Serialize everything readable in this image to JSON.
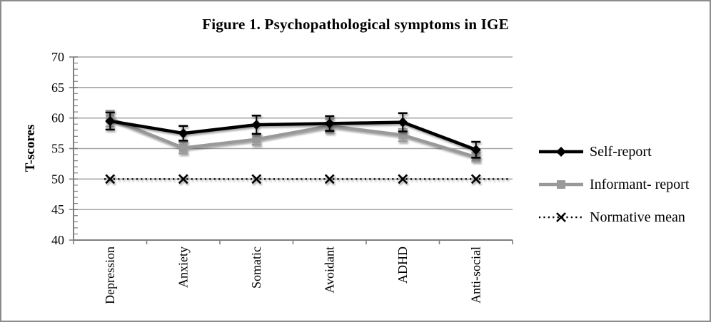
{
  "figure": {
    "title": "Figure 1. Psychopathological symptoms in IGE"
  },
  "chart_data": {
    "type": "line",
    "title": "Figure 1. Psychopathological symptoms in IGE",
    "categories": [
      "Depression",
      "Anxiety",
      "Somatic",
      "Avoidant",
      "ADHD",
      "Anti-social"
    ],
    "series": [
      {
        "name": "Self-report",
        "values": [
          59.5,
          57.5,
          58.9,
          59.1,
          59.3,
          54.8
        ],
        "errors": [
          1.4,
          1.2,
          1.5,
          1.2,
          1.5,
          1.3
        ],
        "color": "#000000",
        "marker": "diamond",
        "line_style": "solid"
      },
      {
        "name": "Informant- report",
        "values": [
          59.9,
          55.1,
          56.5,
          58.7,
          57.2,
          53.6
        ],
        "errors": [
          1.3,
          0.9,
          0.9,
          1.1,
          1.0,
          0.7
        ],
        "color": "#999999",
        "marker": "square",
        "line_style": "solid"
      },
      {
        "name": "Normative mean",
        "values": [
          50,
          50,
          50,
          50,
          50,
          50
        ],
        "errors": [
          0,
          0,
          0,
          0,
          0,
          0
        ],
        "color": "#000000",
        "marker": "x",
        "line_style": "dotted"
      }
    ],
    "xlabel": "",
    "ylabel": "T-scores",
    "ylim": [
      40,
      70
    ],
    "yticks": [
      40,
      45,
      50,
      55,
      60,
      65,
      70
    ],
    "grid": true,
    "legend_position": "right",
    "colors": {
      "gridline": "#a8a8a8",
      "axis": "#7f7f7f",
      "text": "#000000",
      "background": "#ffffff"
    }
  }
}
